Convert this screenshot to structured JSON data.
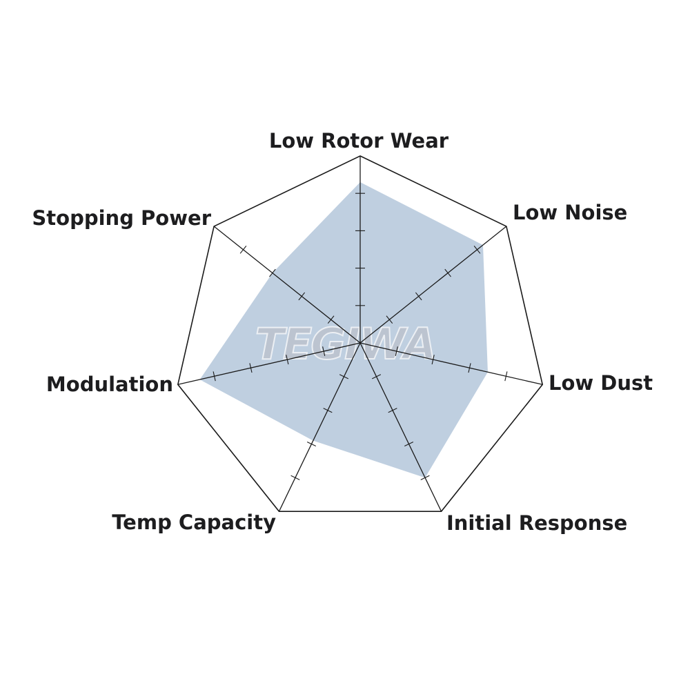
{
  "chart_data": {
    "type": "radar",
    "categories": [
      "Low Rotor Wear",
      "Low Noise",
      "Low Dust",
      "Initial Response",
      "Temp Capacity",
      "Modulation",
      "Stopping Power"
    ],
    "values": [
      4.3,
      4.2,
      3.5,
      4.0,
      2.9,
      4.4,
      3.0
    ],
    "rlim": [
      0,
      5
    ],
    "ticks_per_axis": 4,
    "fill_color": "#bfcfe0",
    "line_color": "#1a1a1a",
    "watermark": "TEGIWA"
  }
}
